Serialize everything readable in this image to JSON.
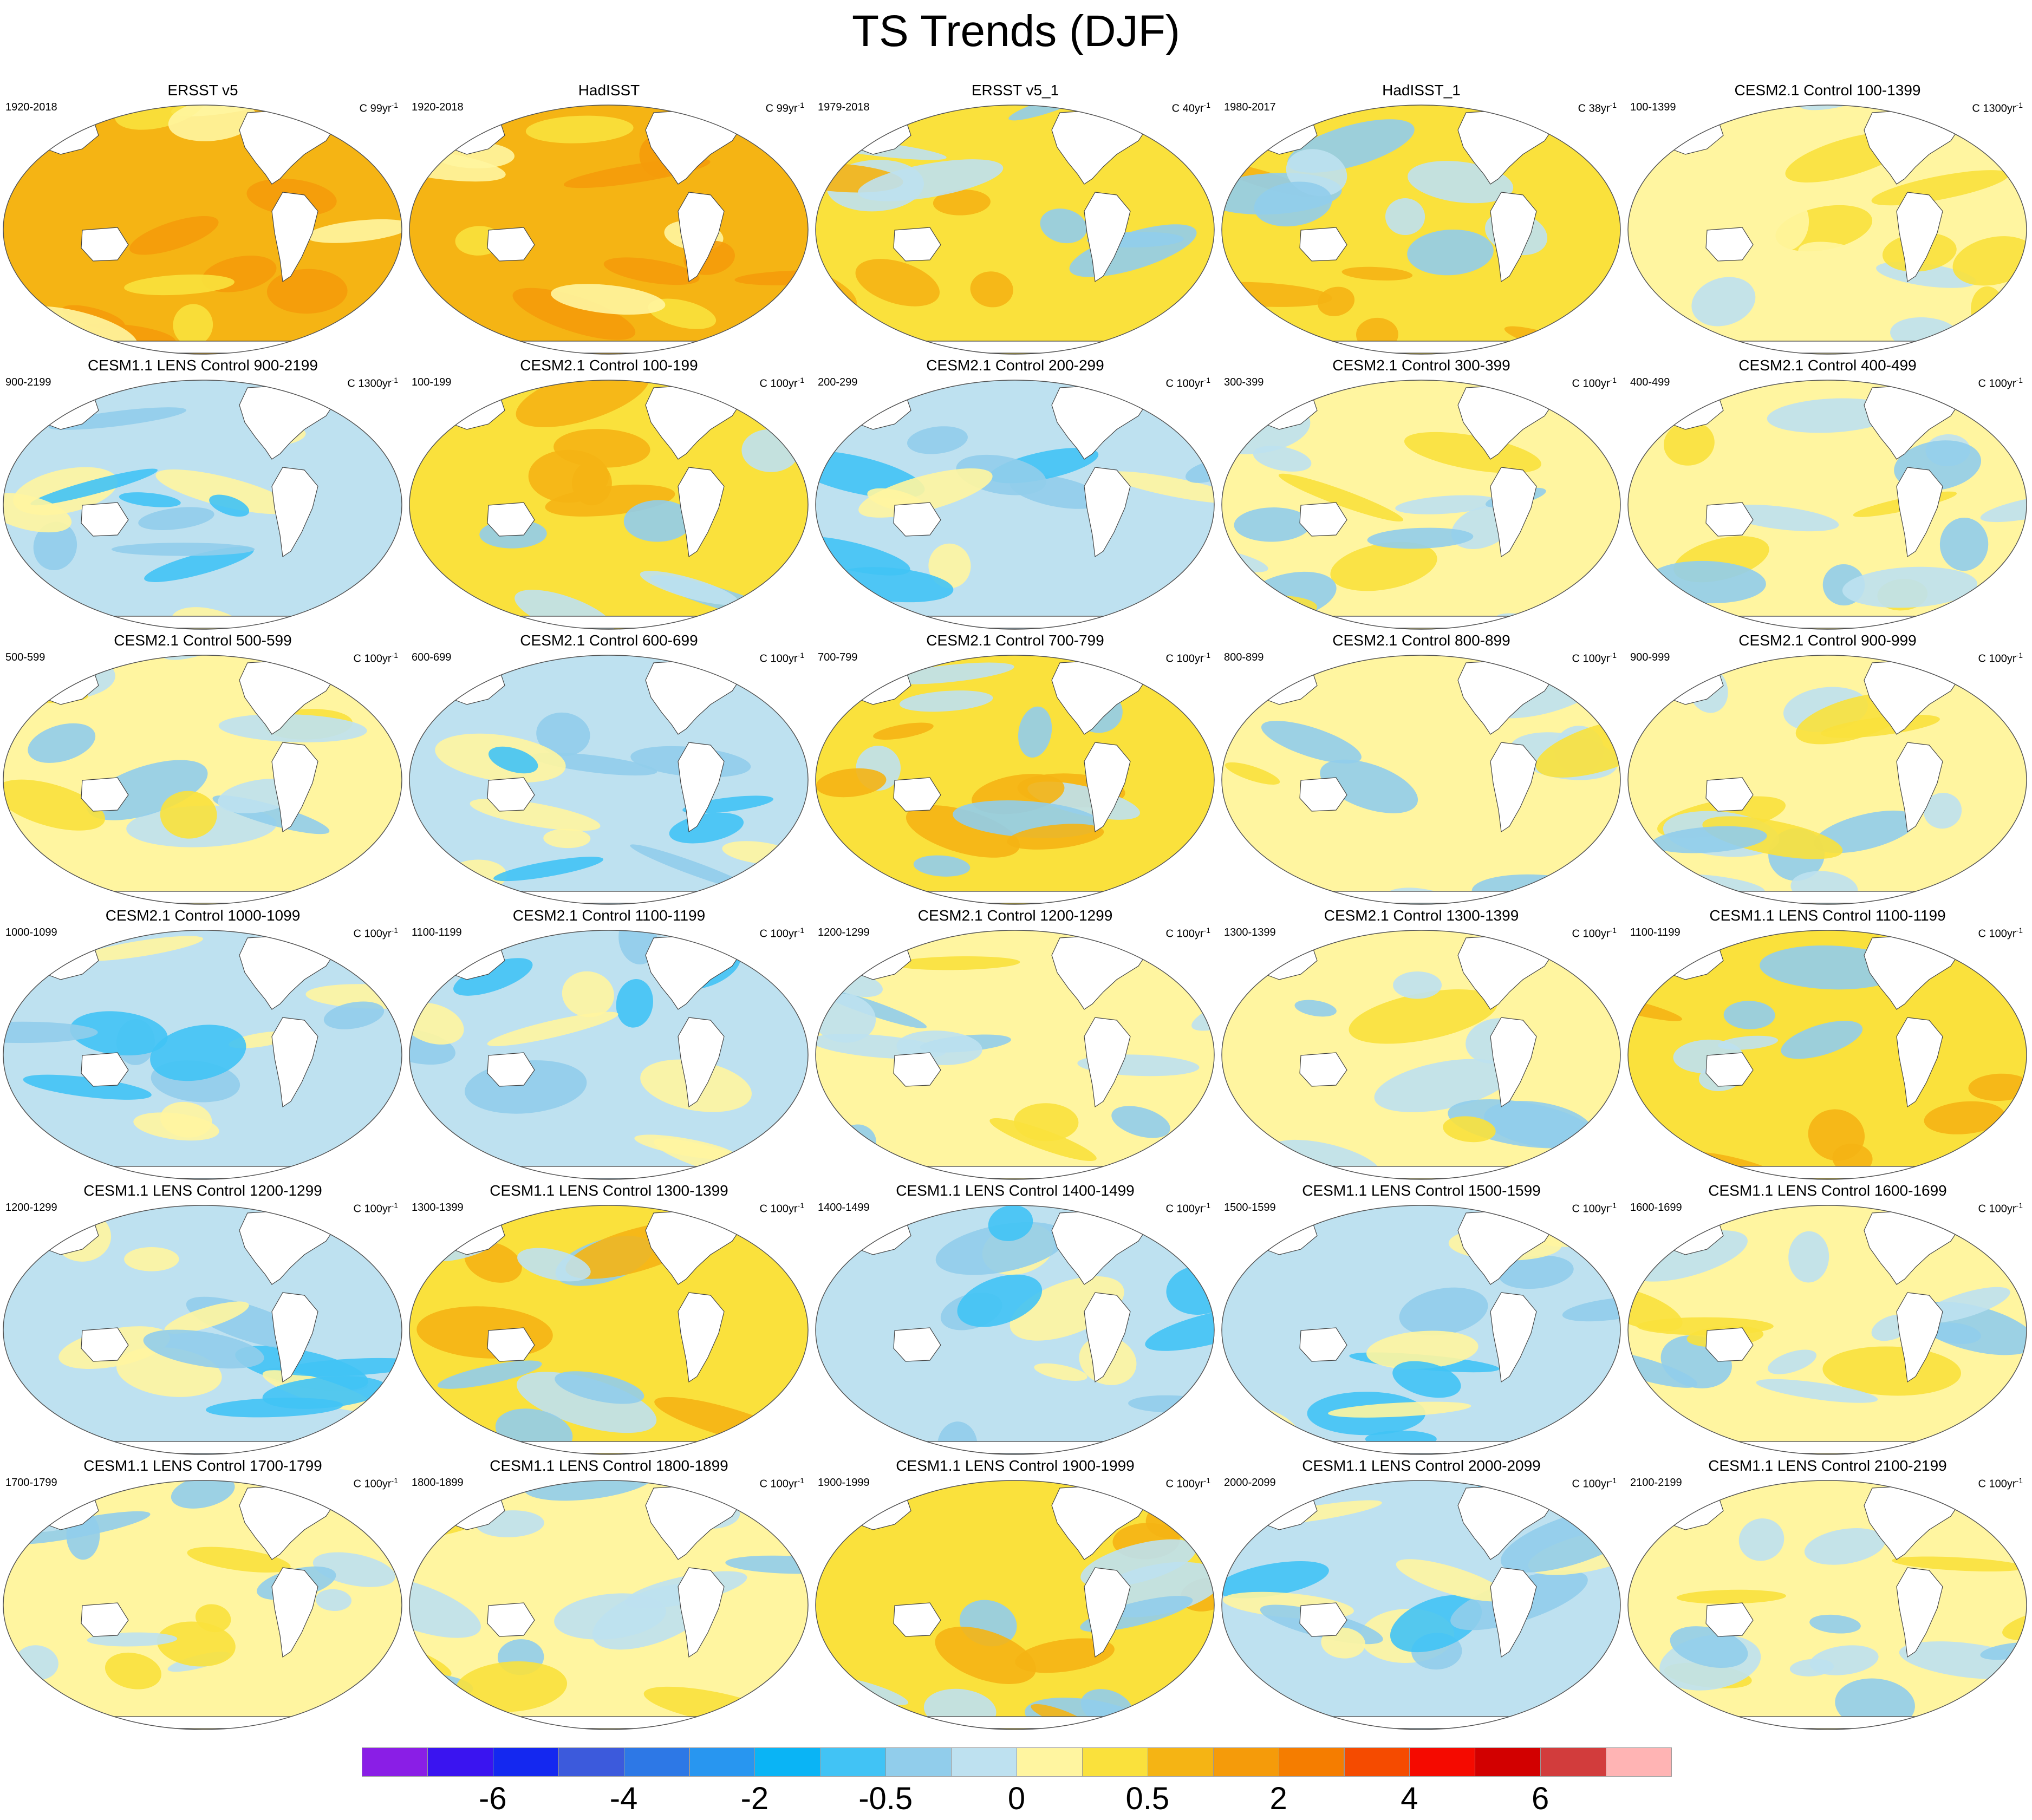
{
  "title": "TS Trends (DJF)",
  "panels": [
    {
      "title": "ERSST v5",
      "period": "1920-2018",
      "units": "C 99yr",
      "units_exp": "-1",
      "scheme": "warm"
    },
    {
      "title": "HadISST",
      "period": "1920-2018",
      "units": "C 99yr",
      "units_exp": "-1",
      "scheme": "warm"
    },
    {
      "title": "ERSST v5_1",
      "period": "1979-2018",
      "units": "C 40yr",
      "units_exp": "-1",
      "scheme": "mixwarm"
    },
    {
      "title": "HadISST_1",
      "period": "1980-2017",
      "units": "C 38yr",
      "units_exp": "-1",
      "scheme": "mixwarm"
    },
    {
      "title": "CESM2.1 Control 100-1399",
      "period": "100-1399",
      "units": "C 1300yr",
      "units_exp": "-1",
      "scheme": "pale"
    },
    {
      "title": "CESM1.1 LENS Control 900-2199",
      "period": "900-2199",
      "units": "C 1300yr",
      "units_exp": "-1",
      "scheme": "cool"
    },
    {
      "title": "CESM2.1 Control 100-199",
      "period": "100-199",
      "units": "C 100yr",
      "units_exp": "-1",
      "scheme": "mixwarm"
    },
    {
      "title": "CESM2.1 Control 200-299",
      "period": "200-299",
      "units": "C 100yr",
      "units_exp": "-1",
      "scheme": "cool"
    },
    {
      "title": "CESM2.1 Control 300-399",
      "period": "300-399",
      "units": "C 100yr",
      "units_exp": "-1",
      "scheme": "mix"
    },
    {
      "title": "CESM2.1 Control 400-499",
      "period": "400-499",
      "units": "C 100yr",
      "units_exp": "-1",
      "scheme": "mix"
    },
    {
      "title": "CESM2.1 Control 500-599",
      "period": "500-599",
      "units": "C 100yr",
      "units_exp": "-1",
      "scheme": "mix"
    },
    {
      "title": "CESM2.1 Control 600-699",
      "period": "600-699",
      "units": "C 100yr",
      "units_exp": "-1",
      "scheme": "cool"
    },
    {
      "title": "CESM2.1 Control 700-799",
      "period": "700-799",
      "units": "C 100yr",
      "units_exp": "-1",
      "scheme": "mixwarm"
    },
    {
      "title": "CESM2.1 Control 800-899",
      "period": "800-899",
      "units": "C 100yr",
      "units_exp": "-1",
      "scheme": "mix"
    },
    {
      "title": "CESM2.1 Control 900-999",
      "period": "900-999",
      "units": "C 100yr",
      "units_exp": "-1",
      "scheme": "mix"
    },
    {
      "title": "CESM2.1 Control 1000-1099",
      "period": "1000-1099",
      "units": "C 100yr",
      "units_exp": "-1",
      "scheme": "cool"
    },
    {
      "title": "CESM2.1 Control 1100-1199",
      "period": "1100-1199",
      "units": "C 100yr",
      "units_exp": "-1",
      "scheme": "cool"
    },
    {
      "title": "CESM2.1 Control 1200-1299",
      "period": "1200-1299",
      "units": "C 100yr",
      "units_exp": "-1",
      "scheme": "mix"
    },
    {
      "title": "CESM2.1 Control 1300-1399",
      "period": "1300-1399",
      "units": "C 100yr",
      "units_exp": "-1",
      "scheme": "mix"
    },
    {
      "title": "CESM1.1 LENS Control 1100-1199",
      "period": "1100-1199",
      "units": "C 100yr",
      "units_exp": "-1",
      "scheme": "mixwarm"
    },
    {
      "title": "CESM1.1 LENS Control 1200-1299",
      "period": "1200-1299",
      "units": "C 100yr",
      "units_exp": "-1",
      "scheme": "cool"
    },
    {
      "title": "CESM1.1 LENS Control 1300-1399",
      "period": "1300-1399",
      "units": "C 100yr",
      "units_exp": "-1",
      "scheme": "mixwarm"
    },
    {
      "title": "CESM1.1 LENS Control 1400-1499",
      "period": "1400-1499",
      "units": "C 100yr",
      "units_exp": "-1",
      "scheme": "cool"
    },
    {
      "title": "CESM1.1 LENS Control 1500-1599",
      "period": "1500-1599",
      "units": "C 100yr",
      "units_exp": "-1",
      "scheme": "cool"
    },
    {
      "title": "CESM1.1 LENS Control 1600-1699",
      "period": "1600-1699",
      "units": "C 100yr",
      "units_exp": "-1",
      "scheme": "mix"
    },
    {
      "title": "CESM1.1 LENS Control 1700-1799",
      "period": "1700-1799",
      "units": "C 100yr",
      "units_exp": "-1",
      "scheme": "mix"
    },
    {
      "title": "CESM1.1 LENS Control 1800-1899",
      "period": "1800-1899",
      "units": "C 100yr",
      "units_exp": "-1",
      "scheme": "mix"
    },
    {
      "title": "CESM1.1 LENS Control 1900-1999",
      "period": "1900-1999",
      "units": "C 100yr",
      "units_exp": "-1",
      "scheme": "mixwarm"
    },
    {
      "title": "CESM1.1 LENS Control 2000-2099",
      "period": "2000-2099",
      "units": "C 100yr",
      "units_exp": "-1",
      "scheme": "cool"
    },
    {
      "title": "CESM1.1 LENS Control 2100-2199",
      "period": "2100-2199",
      "units": "C 100yr",
      "units_exp": "-1",
      "scheme": "mix"
    }
  ],
  "colorbar": {
    "colors": [
      "#8a1ee6",
      "#3a14f0",
      "#1428f0",
      "#3c5adc",
      "#2d78e6",
      "#2896f0",
      "#0ab4f5",
      "#41c3f5",
      "#91cdeb",
      "#bee1f0",
      "#fff5a0",
      "#fae13c",
      "#f5b414",
      "#f59b0a",
      "#f57d00",
      "#f54b00",
      "#f50a00",
      "#d20000",
      "#d23c3c",
      "#ffb4b4"
    ],
    "labels": [
      "-6",
      "-4",
      "-2",
      "-0.5",
      "0",
      "0.5",
      "2",
      "4",
      "6"
    ],
    "label_box_index": [
      2,
      4,
      6,
      8,
      10,
      12,
      14,
      16,
      18
    ]
  },
  "scheme_colors": {
    "warm": {
      "base": "#f5b414",
      "a": "#f59b0a",
      "b": "#fae13c",
      "c": "#fff5a0"
    },
    "mixwarm": {
      "base": "#fae13c",
      "a": "#f5b414",
      "b": "#bee1f0",
      "c": "#91cdeb"
    },
    "pale": {
      "base": "#fff5a0",
      "a": "#fae13c",
      "b": "#bee1f0",
      "c": "#fff5a0"
    },
    "mix": {
      "base": "#fff5a0",
      "a": "#bee1f0",
      "b": "#fae13c",
      "c": "#91cdeb"
    },
    "cool": {
      "base": "#bee1f0",
      "a": "#fff5a0",
      "b": "#91cdeb",
      "c": "#41c3f5"
    }
  }
}
